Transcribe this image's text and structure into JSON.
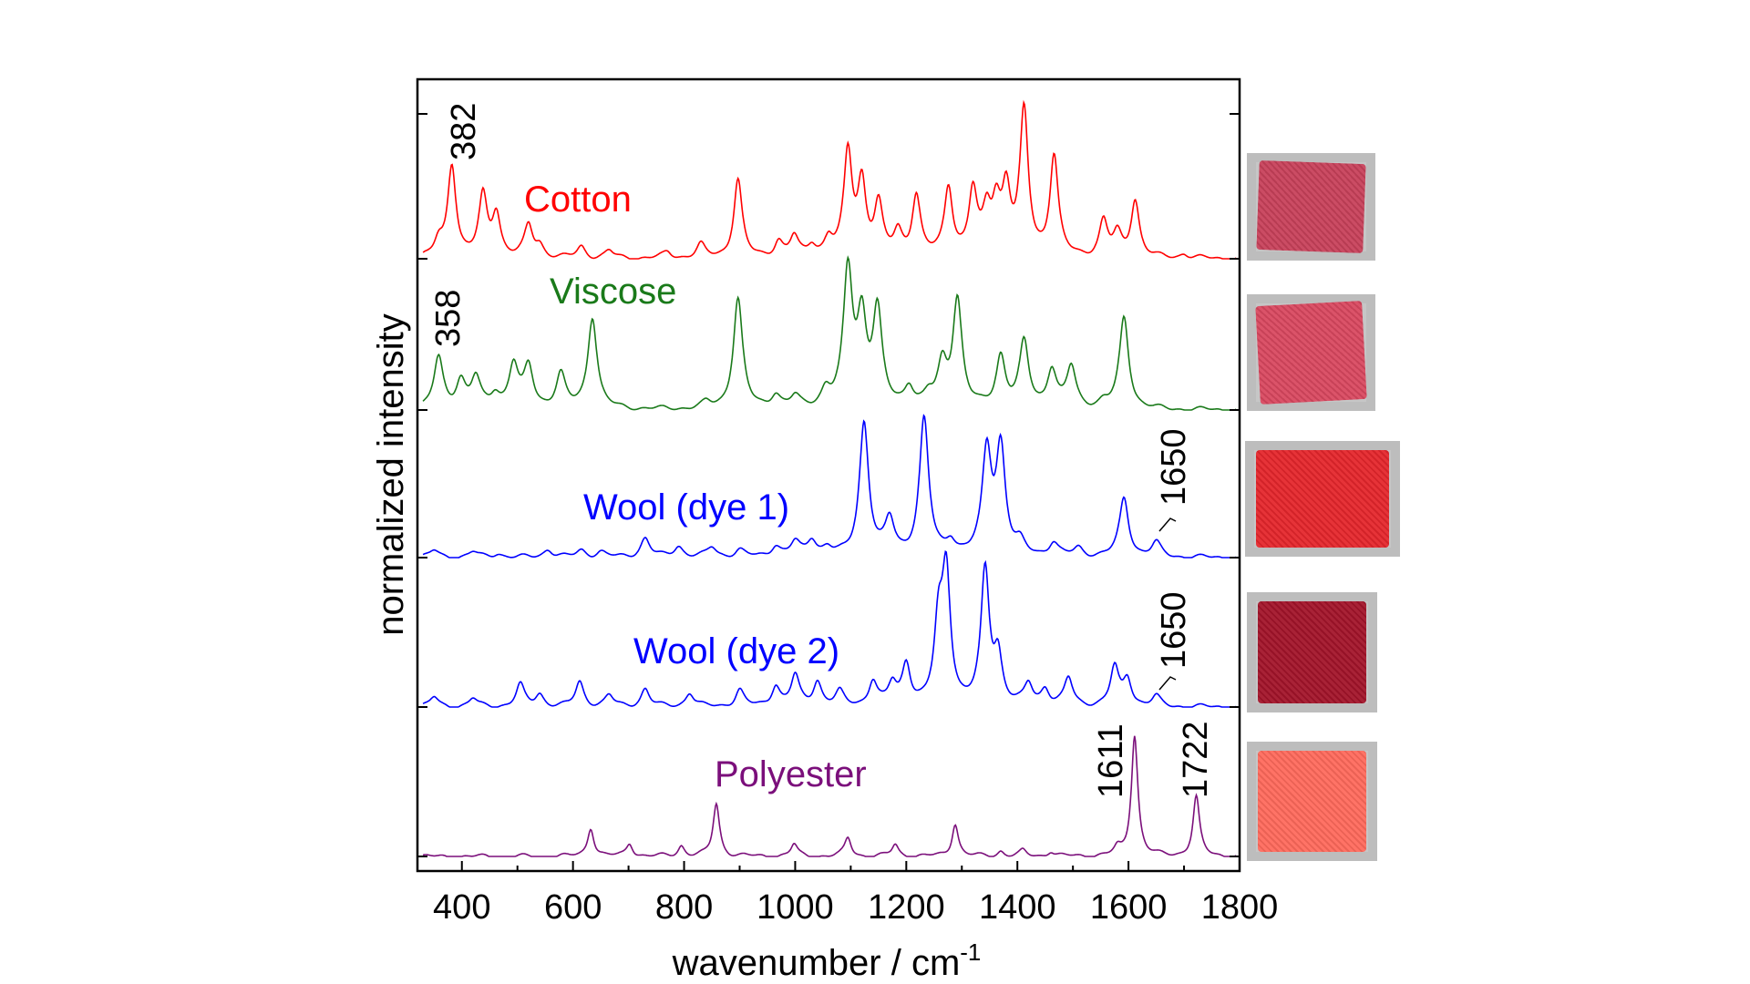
{
  "chart_data": {
    "type": "line",
    "xlabel": "wavenumber / cm",
    "xlabel_superscript": "-1",
    "ylabel": "normalized intensity",
    "xlim": [
      320,
      1800
    ],
    "xticks": [
      400,
      600,
      800,
      1000,
      1200,
      1400,
      1600,
      1800
    ],
    "grid": false,
    "series": [
      {
        "name": "Cotton",
        "color": "#ff0000",
        "peaks": [
          [
            358,
            0.1
          ],
          [
            382,
            0.65
          ],
          [
            438,
            0.42
          ],
          [
            462,
            0.3
          ],
          [
            520,
            0.22
          ],
          [
            540,
            0.08
          ],
          [
            615,
            0.08
          ],
          [
            665,
            0.05
          ],
          [
            770,
            0.04
          ],
          [
            830,
            0.09
          ],
          [
            897,
            0.55
          ],
          [
            970,
            0.11
          ],
          [
            998,
            0.14
          ],
          [
            1030,
            0.08
          ],
          [
            1060,
            0.12
          ],
          [
            1095,
            0.72
          ],
          [
            1120,
            0.5
          ],
          [
            1150,
            0.35
          ],
          [
            1185,
            0.16
          ],
          [
            1218,
            0.42
          ],
          [
            1276,
            0.48
          ],
          [
            1320,
            0.44
          ],
          [
            1345,
            0.28
          ],
          [
            1362,
            0.32
          ],
          [
            1380,
            0.44
          ],
          [
            1412,
            1.0
          ],
          [
            1466,
            0.7
          ],
          [
            1555,
            0.25
          ],
          [
            1580,
            0.15
          ],
          [
            1612,
            0.4
          ],
          [
            1700,
            0.03
          ]
        ]
      },
      {
        "name": "Viscose",
        "color": "#1a7a1a",
        "peaks": [
          [
            358,
            0.38
          ],
          [
            398,
            0.2
          ],
          [
            425,
            0.22
          ],
          [
            460,
            0.1
          ],
          [
            493,
            0.32
          ],
          [
            520,
            0.3
          ],
          [
            578,
            0.25
          ],
          [
            635,
            0.68
          ],
          [
            840,
            0.04
          ],
          [
            897,
            0.82
          ],
          [
            965,
            0.1
          ],
          [
            1000,
            0.08
          ],
          [
            1055,
            0.12
          ],
          [
            1095,
            1.0
          ],
          [
            1120,
            0.62
          ],
          [
            1148,
            0.7
          ],
          [
            1205,
            0.15
          ],
          [
            1240,
            0.08
          ],
          [
            1265,
            0.3
          ],
          [
            1292,
            0.8
          ],
          [
            1370,
            0.38
          ],
          [
            1412,
            0.48
          ],
          [
            1462,
            0.28
          ],
          [
            1497,
            0.3
          ],
          [
            1555,
            0.04
          ],
          [
            1592,
            0.68
          ]
        ]
      },
      {
        "name": "Wool (dye 1)",
        "color": "#0000ff",
        "peaks": [
          [
            350,
            0.05
          ],
          [
            420,
            0.04
          ],
          [
            465,
            0.03
          ],
          [
            555,
            0.06
          ],
          [
            615,
            0.05
          ],
          [
            650,
            0.04
          ],
          [
            730,
            0.14
          ],
          [
            790,
            0.08
          ],
          [
            850,
            0.07
          ],
          [
            900,
            0.05
          ],
          [
            965,
            0.08
          ],
          [
            1000,
            0.1
          ],
          [
            1030,
            0.12
          ],
          [
            1058,
            0.06
          ],
          [
            1124,
            0.98
          ],
          [
            1170,
            0.25
          ],
          [
            1232,
            1.0
          ],
          [
            1280,
            0.1
          ],
          [
            1345,
            0.75
          ],
          [
            1370,
            0.78
          ],
          [
            1405,
            0.08
          ],
          [
            1465,
            0.1
          ],
          [
            1510,
            0.06
          ],
          [
            1592,
            0.43
          ],
          [
            1650,
            0.1
          ]
        ]
      },
      {
        "name": "Wool (dye 2)",
        "color": "#0000ff",
        "peaks": [
          [
            350,
            0.07
          ],
          [
            420,
            0.06
          ],
          [
            505,
            0.16
          ],
          [
            540,
            0.09
          ],
          [
            612,
            0.18
          ],
          [
            665,
            0.08
          ],
          [
            730,
            0.13
          ],
          [
            810,
            0.1
          ],
          [
            900,
            0.12
          ],
          [
            965,
            0.15
          ],
          [
            1000,
            0.22
          ],
          [
            1040,
            0.18
          ],
          [
            1080,
            0.1
          ],
          [
            1140,
            0.18
          ],
          [
            1175,
            0.15
          ],
          [
            1200,
            0.3
          ],
          [
            1258,
            0.55
          ],
          [
            1272,
            0.95
          ],
          [
            1342,
            0.98
          ],
          [
            1365,
            0.35
          ],
          [
            1420,
            0.15
          ],
          [
            1450,
            0.12
          ],
          [
            1492,
            0.2
          ],
          [
            1575,
            0.28
          ],
          [
            1598,
            0.2
          ],
          [
            1650,
            0.07
          ]
        ]
      },
      {
        "name": "Polyester",
        "color": "#7b0f7b",
        "peaks": [
          [
            632,
            0.22
          ],
          [
            702,
            0.1
          ],
          [
            795,
            0.08
          ],
          [
            858,
            0.4
          ],
          [
            998,
            0.09
          ],
          [
            1095,
            0.14
          ],
          [
            1180,
            0.09
          ],
          [
            1288,
            0.25
          ],
          [
            1370,
            0.04
          ],
          [
            1410,
            0.04
          ],
          [
            1460,
            0.04
          ],
          [
            1580,
            0.05
          ],
          [
            1611,
            0.92
          ],
          [
            1722,
            0.45
          ]
        ]
      }
    ],
    "annotations": [
      {
        "text": "382",
        "series": "Cotton",
        "x": 382
      },
      {
        "text": "358",
        "series": "Viscose",
        "x": 358
      },
      {
        "text": "1650",
        "series": "Wool (dye 1)",
        "x": 1650
      },
      {
        "text": "1650",
        "series": "Wool (dye 2)",
        "x": 1650
      },
      {
        "text": "1611",
        "series": "Polyester",
        "x": 1611
      },
      {
        "text": "1722",
        "series": "Polyester",
        "x": 1722
      }
    ],
    "fabric_swatches": [
      {
        "name": "Cotton",
        "color": "#c8415a"
      },
      {
        "name": "Viscose",
        "color": "#d94860"
      },
      {
        "name": "Wool (dye 1)",
        "color": "#e5262c"
      },
      {
        "name": "Wool (dye 2)",
        "color": "#a3142a"
      },
      {
        "name": "Polyester",
        "color": "#ff6a5c"
      }
    ]
  }
}
